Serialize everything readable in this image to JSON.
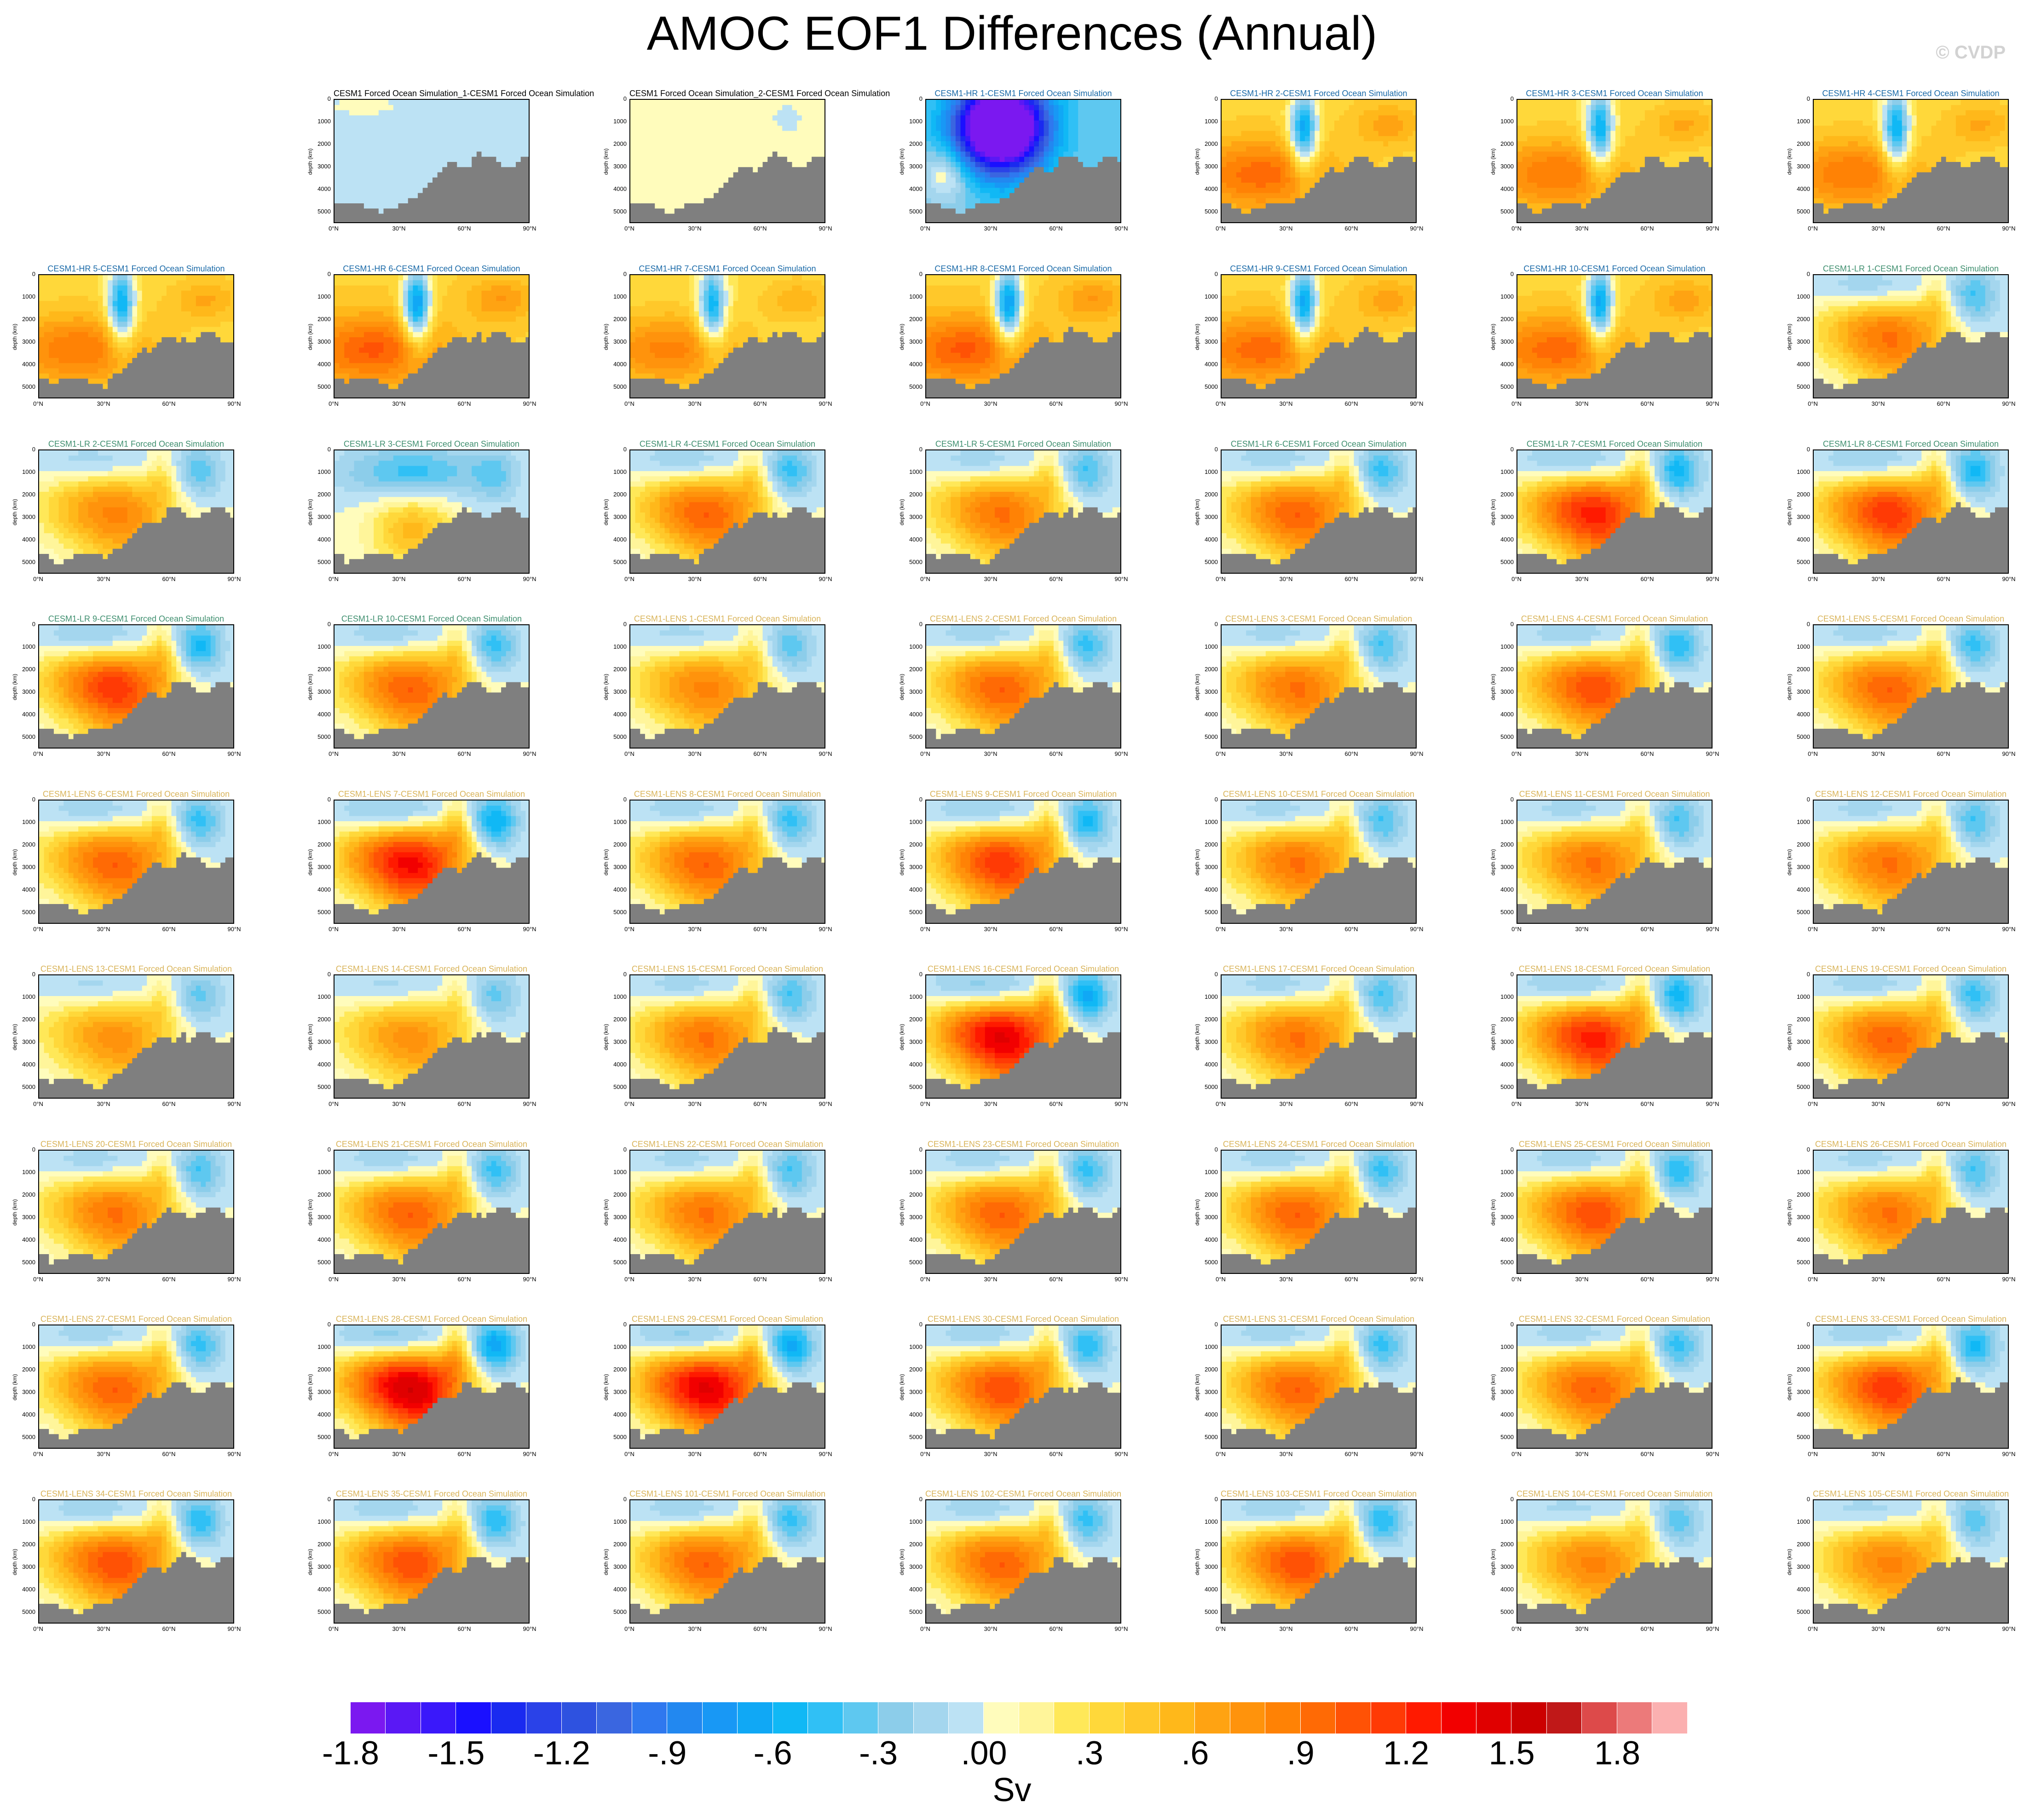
{
  "title": "AMOC EOF1 Differences (Annual)",
  "watermark": "© CVDP",
  "units": "Sv",
  "colors": {
    "hr_title": "#1a6aa8",
    "lr_title": "#3f8f6f",
    "lens_title": "#d9b45a",
    "forced_title": "#000000",
    "land": "#7f7f7f"
  },
  "chart_data": {
    "type": "heatmap",
    "panel_axes": {
      "ylabel": "depth (km)",
      "yticks": [
        "0",
        "1000",
        "2000",
        "3000",
        "4000",
        "5000"
      ],
      "xticks": [
        "0°N",
        "30°N",
        "60°N",
        "90°N"
      ],
      "yrange": [
        0,
        5500
      ],
      "xrange": [
        0,
        90
      ]
    },
    "colorbar": {
      "ticks": [
        "-1.8",
        "-1.5",
        "-1.2",
        "-.9",
        "-.6",
        "-.3",
        ".00",
        ".3",
        ".6",
        ".9",
        "1.2",
        "1.5",
        "1.8"
      ],
      "colors": [
        "#7b18f0",
        "#5a18f5",
        "#3a18fa",
        "#1a10ff",
        "#1a2af0",
        "#2a42e8",
        "#2e52e0",
        "#3a66e0",
        "#2f78ef",
        "#2288f0",
        "#1898f5",
        "#10a8f5",
        "#10b8f5",
        "#30c0f5",
        "#5ec8f0",
        "#8ccdea",
        "#a4d6ee",
        "#bce2f4",
        "#fffcbc",
        "#fff59a",
        "#ffe858",
        "#ffd83a",
        "#ffc82a",
        "#ffb81a",
        "#ffa312",
        "#ff930c",
        "#ff8205",
        "#ff6a05",
        "#ff5205",
        "#ff3a05",
        "#ff1a00",
        "#f20000",
        "#e00000",
        "#cc0000",
        "#c01818",
        "#dd4a4a",
        "#ec7a7a",
        "#fbb0b0"
      ]
    },
    "panels": [
      {
        "title": "CESM1 Forced Ocean Simulation_1-CESM1 Forced Ocean Simulation",
        "group": "forced",
        "pattern": "flat-blue",
        "intensity": 0.2
      },
      {
        "title": "CESM1 Forced Ocean Simulation_2-CESM1 Forced Ocean Simulation",
        "group": "forced",
        "pattern": "flat-yellow",
        "intensity": 0.25
      },
      {
        "title": "CESM1-HR 1-CESM1 Forced Ocean Simulation",
        "group": "hr",
        "pattern": "strong-blue",
        "intensity": 1.0
      },
      {
        "title": "CESM1-HR 2-CESM1 Forced Ocean Simulation",
        "group": "hr",
        "pattern": "hr",
        "intensity": 0.8
      },
      {
        "title": "CESM1-HR 3-CESM1 Forced Ocean Simulation",
        "group": "hr",
        "pattern": "hr",
        "intensity": 0.75
      },
      {
        "title": "CESM1-HR 4-CESM1 Forced Ocean Simulation",
        "group": "hr",
        "pattern": "hr",
        "intensity": 0.75
      },
      {
        "title": "CESM1-HR 5-CESM1 Forced Ocean Simulation",
        "group": "hr",
        "pattern": "hr",
        "intensity": 0.75
      },
      {
        "title": "CESM1-HR 6-CESM1 Forced Ocean Simulation",
        "group": "hr",
        "pattern": "hr",
        "intensity": 0.85
      },
      {
        "title": "CESM1-HR 7-CESM1 Forced Ocean Simulation",
        "group": "hr",
        "pattern": "hr",
        "intensity": 0.7
      },
      {
        "title": "CESM1-HR 8-CESM1 Forced Ocean Simulation",
        "group": "hr",
        "pattern": "hr",
        "intensity": 0.85
      },
      {
        "title": "CESM1-HR 9-CESM1 Forced Ocean Simulation",
        "group": "hr",
        "pattern": "hr",
        "intensity": 0.8
      },
      {
        "title": "CESM1-HR 10-CESM1 Forced Ocean Simulation",
        "group": "hr",
        "pattern": "hr",
        "intensity": 0.8
      },
      {
        "title": "CESM1-LR 1-CESM1 Forced Ocean Simulation",
        "group": "lr",
        "pattern": "lens",
        "intensity": 0.55
      },
      {
        "title": "CESM1-LR 2-CESM1 Forced Ocean Simulation",
        "group": "lr",
        "pattern": "lens",
        "intensity": 0.5
      },
      {
        "title": "CESM1-LR 3-CESM1 Forced Ocean Simulation",
        "group": "lr",
        "pattern": "lr-blue",
        "intensity": 0.6
      },
      {
        "title": "CESM1-LR 4-CESM1 Forced Ocean Simulation",
        "group": "lr",
        "pattern": "lens",
        "intensity": 0.6
      },
      {
        "title": "CESM1-LR 5-CESM1 Forced Ocean Simulation",
        "group": "lr",
        "pattern": "lens",
        "intensity": 0.55
      },
      {
        "title": "CESM1-LR 6-CESM1 Forced Ocean Simulation",
        "group": "lr",
        "pattern": "lens",
        "intensity": 0.6
      },
      {
        "title": "CESM1-LR 7-CESM1 Forced Ocean Simulation",
        "group": "lr",
        "pattern": "lens",
        "intensity": 0.75
      },
      {
        "title": "CESM1-LR 8-CESM1 Forced Ocean Simulation",
        "group": "lr",
        "pattern": "lens",
        "intensity": 0.7
      },
      {
        "title": "CESM1-LR 9-CESM1 Forced Ocean Simulation",
        "group": "lr",
        "pattern": "lens",
        "intensity": 0.7
      },
      {
        "title": "CESM1-LR 10-CESM1 Forced Ocean Simulation",
        "group": "lr",
        "pattern": "lens",
        "intensity": 0.6
      },
      {
        "title": "CESM1-LENS 1-CESM1 Forced Ocean Simulation",
        "group": "lens",
        "pattern": "lens",
        "intensity": 0.5
      },
      {
        "title": "CESM1-LENS 2-CESM1 Forced Ocean Simulation",
        "group": "lens",
        "pattern": "lens",
        "intensity": 0.6
      },
      {
        "title": "CESM1-LENS 3-CESM1 Forced Ocean Simulation",
        "group": "lens",
        "pattern": "lens",
        "intensity": 0.55
      },
      {
        "title": "CESM1-LENS 4-CESM1 Forced Ocean Simulation",
        "group": "lens",
        "pattern": "lens",
        "intensity": 0.65
      },
      {
        "title": "CESM1-LENS 5-CESM1 Forced Ocean Simulation",
        "group": "lens",
        "pattern": "lens",
        "intensity": 0.6
      },
      {
        "title": "CESM1-LENS 6-CESM1 Forced Ocean Simulation",
        "group": "lens",
        "pattern": "lens",
        "intensity": 0.6
      },
      {
        "title": "CESM1-LENS 7-CESM1 Forced Ocean Simulation",
        "group": "lens",
        "pattern": "lens",
        "intensity": 0.8
      },
      {
        "title": "CESM1-LENS 8-CESM1 Forced Ocean Simulation",
        "group": "lens",
        "pattern": "lens",
        "intensity": 0.6
      },
      {
        "title": "CESM1-LENS 9-CESM1 Forced Ocean Simulation",
        "group": "lens",
        "pattern": "lens",
        "intensity": 0.7
      },
      {
        "title": "CESM1-LENS 10-CESM1 Forced Ocean Simulation",
        "group": "lens",
        "pattern": "lens",
        "intensity": 0.55
      },
      {
        "title": "CESM1-LENS 11-CESM1 Forced Ocean Simulation",
        "group": "lens",
        "pattern": "lens",
        "intensity": 0.55
      },
      {
        "title": "CESM1-LENS 12-CESM1 Forced Ocean Simulation",
        "group": "lens",
        "pattern": "lens",
        "intensity": 0.55
      },
      {
        "title": "CESM1-LENS 13-CESM1 Forced Ocean Simulation",
        "group": "lens",
        "pattern": "lens",
        "intensity": 0.45
      },
      {
        "title": "CESM1-LENS 14-CESM1 Forced Ocean Simulation",
        "group": "lens",
        "pattern": "lens",
        "intensity": 0.45
      },
      {
        "title": "CESM1-LENS 15-CESM1 Forced Ocean Simulation",
        "group": "lens",
        "pattern": "lens",
        "intensity": 0.55
      },
      {
        "title": "CESM1-LENS 16-CESM1 Forced Ocean Simulation",
        "group": "lens",
        "pattern": "lens",
        "intensity": 0.85
      },
      {
        "title": "CESM1-LENS 17-CESM1 Forced Ocean Simulation",
        "group": "lens",
        "pattern": "lens",
        "intensity": 0.55
      },
      {
        "title": "CESM1-LENS 18-CESM1 Forced Ocean Simulation",
        "group": "lens",
        "pattern": "lens",
        "intensity": 0.75
      },
      {
        "title": "CESM1-LENS 19-CESM1 Forced Ocean Simulation",
        "group": "lens",
        "pattern": "lens",
        "intensity": 0.6
      },
      {
        "title": "CESM1-LENS 20-CESM1 Forced Ocean Simulation",
        "group": "lens",
        "pattern": "lens",
        "intensity": 0.55
      },
      {
        "title": "CESM1-LENS 21-CESM1 Forced Ocean Simulation",
        "group": "lens",
        "pattern": "lens",
        "intensity": 0.6
      },
      {
        "title": "CESM1-LENS 22-CESM1 Forced Ocean Simulation",
        "group": "lens",
        "pattern": "lens",
        "intensity": 0.55
      },
      {
        "title": "CESM1-LENS 23-CESM1 Forced Ocean Simulation",
        "group": "lens",
        "pattern": "lens",
        "intensity": 0.6
      },
      {
        "title": "CESM1-LENS 24-CESM1 Forced Ocean Simulation",
        "group": "lens",
        "pattern": "lens",
        "intensity": 0.6
      },
      {
        "title": "CESM1-LENS 25-CESM1 Forced Ocean Simulation",
        "group": "lens",
        "pattern": "lens",
        "intensity": 0.65
      },
      {
        "title": "CESM1-LENS 26-CESM1 Forced Ocean Simulation",
        "group": "lens",
        "pattern": "lens",
        "intensity": 0.55
      },
      {
        "title": "CESM1-LENS 27-CESM1 Forced Ocean Simulation",
        "group": "lens",
        "pattern": "lens",
        "intensity": 0.6
      },
      {
        "title": "CESM1-LENS 28-CESM1 Forced Ocean Simulation",
        "group": "lens",
        "pattern": "lens",
        "intensity": 0.9
      },
      {
        "title": "CESM1-LENS 29-CESM1 Forced Ocean Simulation",
        "group": "lens",
        "pattern": "lens",
        "intensity": 0.85
      },
      {
        "title": "CESM1-LENS 30-CESM1 Forced Ocean Simulation",
        "group": "lens",
        "pattern": "lens",
        "intensity": 0.65
      },
      {
        "title": "CESM1-LENS 31-CESM1 Forced Ocean Simulation",
        "group": "lens",
        "pattern": "lens",
        "intensity": 0.6
      },
      {
        "title": "CESM1-LENS 32-CESM1 Forced Ocean Simulation",
        "group": "lens",
        "pattern": "lens",
        "intensity": 0.6
      },
      {
        "title": "CESM1-LENS 33-CESM1 Forced Ocean Simulation",
        "group": "lens",
        "pattern": "lens",
        "intensity": 0.7
      },
      {
        "title": "CESM1-LENS 34-CESM1 Forced Ocean Simulation",
        "group": "lens",
        "pattern": "lens",
        "intensity": 0.65
      },
      {
        "title": "CESM1-LENS 35-CESM1 Forced Ocean Simulation",
        "group": "lens",
        "pattern": "lens",
        "intensity": 0.65
      },
      {
        "title": "CESM1-LENS 101-CESM1 Forced Ocean Simulation",
        "group": "lens",
        "pattern": "lens",
        "intensity": 0.6
      },
      {
        "title": "CESM1-LENS 102-CESM1 Forced Ocean Simulation",
        "group": "lens",
        "pattern": "lens",
        "intensity": 0.6
      },
      {
        "title": "CESM1-LENS 103-CESM1 Forced Ocean Simulation",
        "group": "lens",
        "pattern": "lens",
        "intensity": 0.65
      },
      {
        "title": "CESM1-LENS 104-CESM1 Forced Ocean Simulation",
        "group": "lens",
        "pattern": "lens",
        "intensity": 0.5
      },
      {
        "title": "CESM1-LENS 105-CESM1 Forced Ocean Simulation",
        "group": "lens",
        "pattern": "lens",
        "intensity": 0.5
      }
    ]
  }
}
